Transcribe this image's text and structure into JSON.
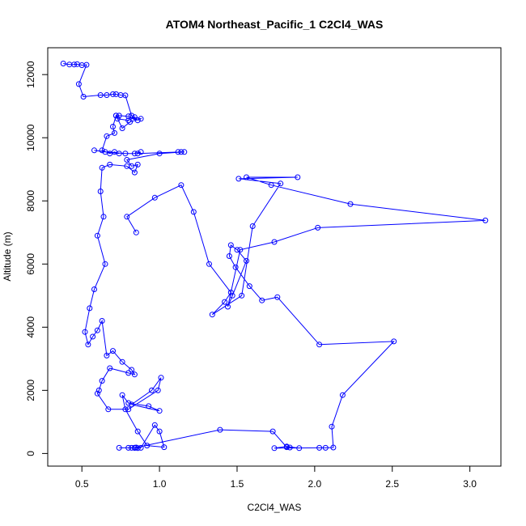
{
  "chart_data": {
    "type": "scatter",
    "title": "ATOM4 Northeast_Pacific_1 C2Cl4_WAS",
    "xlabel": "C2Cl4_WAS",
    "ylabel": "Altitude (m)",
    "xlim": [
      0.35,
      3.1
    ],
    "ylim": [
      0,
      12400
    ],
    "xticks": [
      0.5,
      1.0,
      1.5,
      2.0,
      2.5,
      3.0
    ],
    "xtick_labels": [
      "0.5",
      "1.0",
      "1.5",
      "2.0",
      "2.5",
      "3.0"
    ],
    "yticks": [
      0,
      2000,
      4000,
      6000,
      8000,
      10000,
      12000
    ],
    "ytick_labels": [
      "0",
      "2000",
      "4000",
      "6000",
      "8000",
      "10000",
      "12000"
    ],
    "grid": false,
    "legend": "none",
    "series": [
      {
        "color": "#0000ff",
        "marker": "open-circle",
        "line": true,
        "x": [
          0.38,
          0.42,
          0.45,
          0.47,
          0.5,
          0.53,
          0.48,
          0.51,
          0.62,
          0.66,
          0.7,
          0.72,
          0.75,
          0.78,
          0.82,
          0.86,
          0.8,
          0.74,
          0.72,
          0.73,
          0.8,
          0.84,
          0.88,
          0.81,
          0.76,
          0.72,
          0.7,
          0.71,
          0.66,
          0.63,
          0.68,
          0.71,
          0.74,
          0.58,
          0.65,
          0.78,
          0.84,
          0.88,
          0.86,
          1.14,
          1.12,
          1.16,
          1.0,
          0.79,
          0.82,
          0.86,
          0.84,
          0.79,
          0.68,
          0.63,
          0.62,
          0.64,
          0.6,
          0.65,
          0.58,
          0.55,
          0.52,
          0.54,
          0.57,
          0.6,
          0.63,
          0.66,
          0.7,
          0.76,
          0.82,
          0.84,
          0.8,
          0.68,
          0.63,
          0.61,
          0.6,
          0.67,
          0.8,
          0.99,
          1.01,
          0.95,
          0.82,
          1.0,
          0.93,
          0.8,
          0.76,
          0.78,
          0.86,
          0.92,
          1.03,
          1.0,
          0.97,
          0.88,
          0.84,
          0.82,
          0.84,
          0.86,
          0.84,
          0.74,
          0.8,
          0.85,
          1.39,
          1.73,
          1.82,
          1.84,
          1.9,
          1.82,
          1.74,
          2.03,
          2.07,
          2.12,
          2.11,
          2.18,
          2.51,
          2.03,
          1.76,
          1.66,
          1.58,
          1.49,
          1.45,
          1.46,
          1.5,
          1.56,
          1.47,
          1.44,
          1.52,
          1.74,
          2.02,
          3.1,
          2.23,
          1.72,
          1.56,
          1.89,
          1.51,
          1.78,
          1.6,
          1.53,
          1.34,
          1.42,
          1.46,
          1.32,
          1.22,
          1.14,
          0.97,
          0.79,
          0.85
        ],
        "y": [
          12350,
          12320,
          12320,
          12330,
          12300,
          12310,
          11700,
          11300,
          11350,
          11350,
          11380,
          11380,
          11350,
          11340,
          10700,
          10550,
          10680,
          10700,
          10700,
          10600,
          10550,
          10650,
          10600,
          10500,
          10300,
          10700,
          10350,
          10150,
          10050,
          9600,
          9500,
          9550,
          9500,
          9600,
          9550,
          9500,
          9500,
          9550,
          9500,
          9550,
          9550,
          9550,
          9500,
          9300,
          9100,
          9150,
          8900,
          9100,
          9150,
          9050,
          8300,
          7500,
          6900,
          6000,
          5200,
          4600,
          3850,
          3450,
          3700,
          3900,
          4200,
          3100,
          3250,
          2900,
          2650,
          2500,
          2550,
          2700,
          2300,
          2000,
          1900,
          1400,
          1400,
          2000,
          2400,
          2000,
          1550,
          1350,
          1500,
          1600,
          1850,
          1400,
          700,
          250,
          200,
          700,
          900,
          180,
          180,
          180,
          180,
          170,
          180,
          180,
          180,
          190,
          750,
          700,
          200,
          190,
          170,
          220,
          170,
          180,
          180,
          190,
          850,
          1850,
          3550,
          3450,
          4950,
          4850,
          5300,
          5900,
          6250,
          6600,
          6450,
          6100,
          5000,
          4650,
          6450,
          6700,
          7150,
          7380,
          7900,
          8500,
          8750,
          8750,
          8700,
          8550,
          7200,
          5000,
          4400,
          4800,
          5100,
          6000,
          7650,
          8500,
          8100,
          7500,
          7000
        ]
      }
    ]
  }
}
